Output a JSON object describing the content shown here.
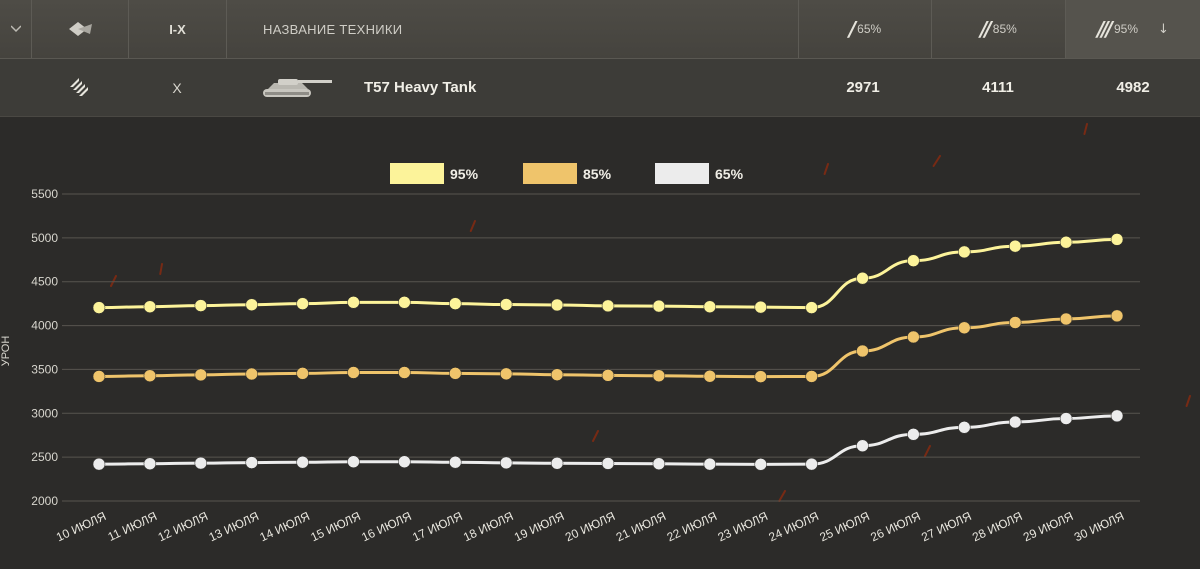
{
  "header": {
    "tiers_label": "I-X",
    "name_label": "НАЗВАНИЕ ТЕХНИКИ",
    "mark1_glyph": "/",
    "mark1_pct": "65%",
    "mark2_glyph": "//",
    "mark2_pct": "85%",
    "mark3_glyph": "///",
    "mark3_pct": "95%",
    "sort_icon": "↓"
  },
  "vehicle": {
    "tier": "X",
    "name": "T57 Heavy Tank",
    "v65": "2971",
    "v85": "4111",
    "v95": "4982"
  },
  "chart_data": {
    "type": "line",
    "ylabel": "УРОН",
    "xlabel": "",
    "ylim": [
      2000,
      5500
    ],
    "yticks": [
      2000,
      2500,
      3000,
      3500,
      4000,
      4500,
      5000,
      5500
    ],
    "grid": true,
    "legend_position": "top-center",
    "categories": [
      "10 июля",
      "11 июля",
      "12 июля",
      "13 июля",
      "14 июля",
      "15 июля",
      "16 июля",
      "17 июля",
      "18 июля",
      "19 июля",
      "20 июля",
      "21 июля",
      "22 июля",
      "23 июля",
      "24 июля",
      "25 июля",
      "26 июля",
      "27 июля",
      "28 июля",
      "29 июля",
      "30 июля"
    ],
    "series": [
      {
        "name": "95%",
        "color": "#fcf39a",
        "values": [
          4205,
          4215,
          4228,
          4238,
          4250,
          4265,
          4265,
          4250,
          4240,
          4235,
          4225,
          4222,
          4215,
          4210,
          4205,
          4540,
          4740,
          4840,
          4905,
          4950,
          4982
        ]
      },
      {
        "name": "85%",
        "color": "#efc46b",
        "values": [
          3420,
          3428,
          3438,
          3448,
          3455,
          3465,
          3465,
          3455,
          3450,
          3440,
          3432,
          3428,
          3422,
          3418,
          3420,
          3710,
          3870,
          3975,
          4035,
          4075,
          4111
        ]
      },
      {
        "name": "65%",
        "color": "#ececec",
        "values": [
          2420,
          2425,
          2432,
          2438,
          2442,
          2448,
          2448,
          2442,
          2435,
          2430,
          2428,
          2425,
          2420,
          2418,
          2420,
          2630,
          2760,
          2840,
          2900,
          2940,
          2971
        ]
      }
    ]
  }
}
